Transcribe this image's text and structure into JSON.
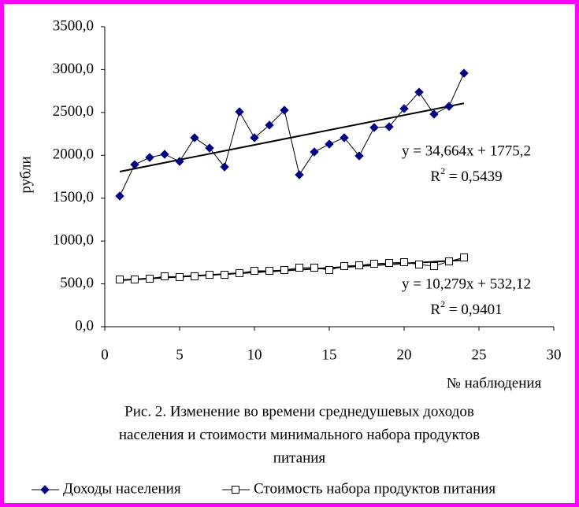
{
  "chart_data": {
    "type": "line",
    "x_label": "№ наблюдения",
    "y_label": "рубли",
    "caption": [
      "Рис. 2. Изменение во времени среднедушевых доходов",
      "населения и стоимости минимального набора продуктов",
      "питания"
    ],
    "x": [
      1,
      2,
      3,
      4,
      5,
      6,
      7,
      8,
      9,
      10,
      11,
      12,
      13,
      14,
      15,
      16,
      17,
      18,
      19,
      20,
      21,
      22,
      23,
      24
    ],
    "xlim": [
      0,
      30
    ],
    "xticks": [
      0,
      5,
      10,
      15,
      20,
      25,
      30
    ],
    "ylim": [
      0,
      3500
    ],
    "yticks": [
      {
        "value": 0,
        "label": "0,0"
      },
      {
        "value": 500,
        "label": "500,0"
      },
      {
        "value": 1000,
        "label": "1000,0"
      },
      {
        "value": 1500,
        "label": "1500,0"
      },
      {
        "value": 2000,
        "label": "2000,0"
      },
      {
        "value": 2500,
        "label": "2500,0"
      },
      {
        "value": 3000,
        "label": "3000,0"
      },
      {
        "value": 3500,
        "label": "3500,0"
      }
    ],
    "grid": false,
    "legend": "bottom",
    "series": [
      {
        "name": "Доходы населения",
        "color": "#000080",
        "marker": "diamond",
        "values": [
          1525,
          1892,
          1975,
          2012,
          1929,
          2205,
          2085,
          1865,
          2508,
          2205,
          2352,
          2526,
          1773,
          2039,
          2131,
          2205,
          1993,
          2324,
          2333,
          2545,
          2737,
          2480,
          2572,
          2958
        ],
        "trendline": {
          "slope": 34.664,
          "intercept": 1775.2,
          "equation": "y = 34,664x + 1775,2",
          "r2_base": "R",
          "r2_exponent": "2",
          "r2_text": " = 0,5439"
        }
      },
      {
        "name": "Стоимость набора продуктов питания",
        "color": "#000000",
        "marker": "square",
        "values": [
          551,
          551,
          560,
          588,
          579,
          588,
          606,
          606,
          625,
          652,
          652,
          661,
          689,
          689,
          661,
          707,
          716,
          735,
          744,
          753,
          726,
          707,
          762,
          808
        ],
        "trendline": {
          "slope": 10.279,
          "intercept": 532.12,
          "equation": "y = 10,279x + 532,12",
          "r2_base": "R",
          "r2_exponent": "2",
          "r2_text": " = 0,9401"
        }
      }
    ]
  }
}
